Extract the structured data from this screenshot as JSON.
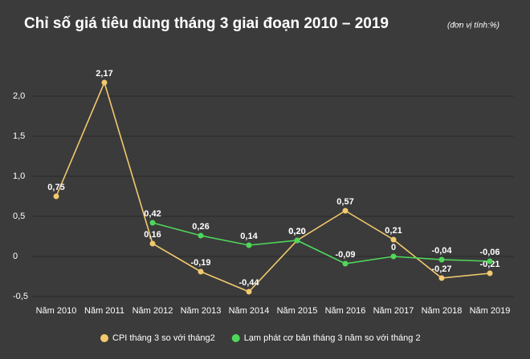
{
  "chart_data": {
    "type": "line",
    "title": "Chỉ số giá tiêu dùng tháng 3  giai đoạn 2010 – 2019",
    "subtitle": "(đơn vị tính:%)",
    "categories": [
      "Năm 2010",
      "Năm 2011",
      "Năm 2012",
      "Năm 2013",
      "Năm 2014",
      "Năm 2015",
      "Năm 2016",
      "Năm 2017",
      "Năm 2018",
      "Năm 2019"
    ],
    "series": [
      {
        "name": "CPI tháng 3 so với tháng2",
        "color": "#f2c96d",
        "values": [
          0.75,
          2.17,
          0.16,
          -0.19,
          -0.44,
          0.2,
          0.57,
          0.21,
          -0.27,
          -0.21
        ],
        "value_labels": [
          "0,75",
          "2,17",
          "0,16",
          "-0,19",
          "-0,44",
          "0,20",
          "0,57",
          "0,21",
          "-0,27",
          "-0,21"
        ]
      },
      {
        "name": "Lạm phát cơ bản tháng 3 năm so với tháng 2",
        "color": "#4fd75a",
        "values": [
          null,
          null,
          0.42,
          0.26,
          0.14,
          0.2,
          -0.09,
          0,
          -0.04,
          -0.06
        ],
        "value_labels": [
          null,
          null,
          "0,42",
          "0,26",
          "0,14",
          "0,20",
          "-0,09",
          "0",
          "-0,04",
          "-0,06"
        ]
      }
    ],
    "ylim": [
      -0.5,
      2.2
    ],
    "yticks": [
      {
        "value": -0.5,
        "label": "-0,5"
      },
      0,
      {
        "value": 0.5,
        "label": "0,5"
      },
      {
        "value": 1,
        "label": "1,0"
      },
      {
        "value": 1.5,
        "label": "1,5"
      },
      {
        "value": 2,
        "label": "2,0"
      }
    ],
    "grid": true,
    "legend": "bottom"
  }
}
